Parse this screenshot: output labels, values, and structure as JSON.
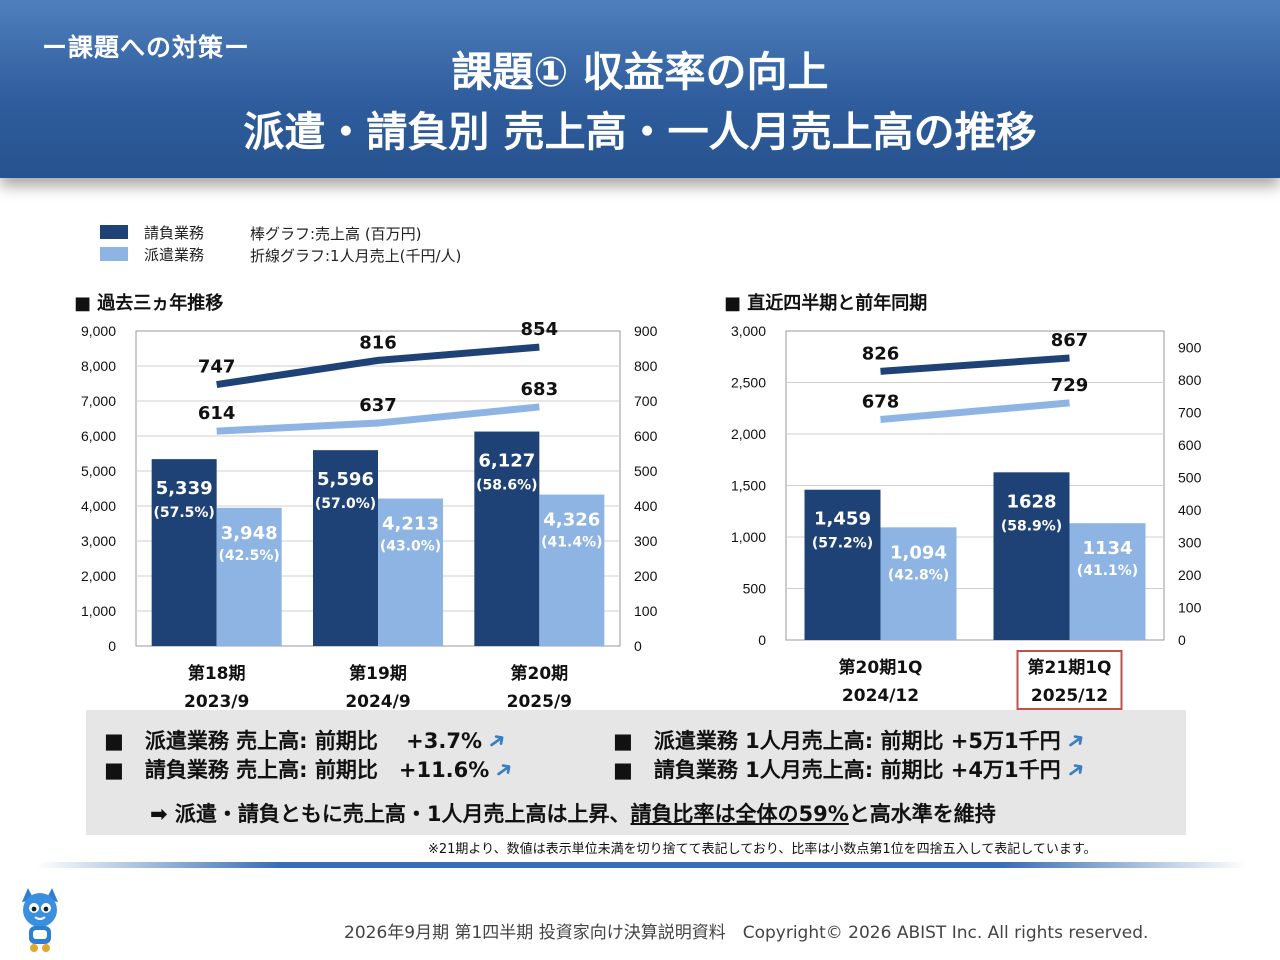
{
  "header": {
    "tag": "ー課題への対策ー",
    "title_line1": "課題① 収益率の向上",
    "title_line2": "派遣・請負別 売上高・一人月売上高の推移"
  },
  "legend": {
    "items": [
      {
        "label": "請負業務",
        "color": "#1f4276"
      },
      {
        "label": "派遣業務",
        "color": "#8eb4e3"
      }
    ],
    "notes": [
      "棒グラフ:売上高 (百万円)",
      "折線グラフ:1人月売上(千円/人)"
    ]
  },
  "colors": {
    "dark": "#1f4276",
    "light": "#8eb4e3",
    "highlight_box": "#c0504d"
  },
  "chart_data": [
    {
      "type": "bar",
      "title": "■ 過去三ヵ年推移",
      "categories": [
        "第18期",
        "第19期",
        "第20期"
      ],
      "category_sublabels": [
        "2023/9",
        "2024/9",
        "2025/9"
      ],
      "ylim": [
        0,
        9000
      ],
      "y_ticks": [
        "9,000",
        "8,000",
        "7,000",
        "6,000",
        "5,000",
        "4,000",
        "3,000",
        "2,000",
        "1,000",
        "0"
      ],
      "y2lim": [
        0,
        900
      ],
      "y2_ticks": [
        "900",
        "800",
        "700",
        "600",
        "500",
        "400",
        "300",
        "200",
        "100",
        "0"
      ],
      "series": [
        {
          "name": "請負業務",
          "kind": "bar",
          "values": [
            5339,
            5596,
            6127
          ],
          "labels": [
            "5,339",
            "5,596",
            "6,127"
          ],
          "pct": [
            "(57.5%)",
            "(57.0%)",
            "(58.6%)"
          ]
        },
        {
          "name": "派遣業務",
          "kind": "bar",
          "values": [
            3948,
            4213,
            4326
          ],
          "labels": [
            "3,948",
            "4,213",
            "4,326"
          ],
          "pct": [
            "(42.5%)",
            "(43.0%)",
            "(41.4%)"
          ]
        },
        {
          "name": "請負業務",
          "kind": "line",
          "axis": "y2",
          "values": [
            747,
            816,
            854
          ],
          "labels": [
            "747",
            "816",
            "854"
          ]
        },
        {
          "name": "派遣業務",
          "kind": "line",
          "axis": "y2",
          "values": [
            614,
            637,
            683
          ],
          "labels": [
            "614",
            "637",
            "683"
          ]
        }
      ],
      "grid": true,
      "legend": "top-left"
    },
    {
      "type": "bar",
      "title": "■ 直近四半期と前年同期",
      "categories": [
        "第20期1Q",
        "第21期1Q"
      ],
      "category_sublabels": [
        "2024/12",
        "2025/12"
      ],
      "highlight_category": 1,
      "ylim": [
        0,
        3000
      ],
      "y_ticks": [
        "3,000",
        "2,500",
        "2,000",
        "1,500",
        "1,000",
        "500",
        "0"
      ],
      "y2lim": [
        0,
        950
      ],
      "y2_ticks": [
        "900",
        "800",
        "700",
        "600",
        "500",
        "400",
        "300",
        "200",
        "100",
        "0"
      ],
      "series": [
        {
          "name": "請負業務",
          "kind": "bar",
          "values": [
            1459,
            1628
          ],
          "labels": [
            "1,459",
            "1628"
          ],
          "pct": [
            "(57.2%)",
            "(58.9%)"
          ]
        },
        {
          "name": "派遣業務",
          "kind": "bar",
          "values": [
            1094,
            1134
          ],
          "labels": [
            "1,094",
            "1134"
          ],
          "pct": [
            "(42.8%)",
            "(41.1%)"
          ]
        },
        {
          "name": "請負業務",
          "kind": "line",
          "axis": "y2",
          "values": [
            826,
            867
          ],
          "labels": [
            "826",
            "867"
          ]
        },
        {
          "name": "派遣業務",
          "kind": "line",
          "axis": "y2",
          "values": [
            678,
            729
          ],
          "labels": [
            "678",
            "729"
          ]
        }
      ],
      "grid": true
    }
  ],
  "summary": {
    "items": [
      {
        "text": "■　派遣業務 売上高: 前期比　 +3.7%"
      },
      {
        "text": "■　請負業務 売上高: 前期比　+11.6%"
      },
      {
        "text": "■　派遣業務 1人月売上高: 前期比 +5万1千円"
      },
      {
        "text": "■　請負業務 1人月売上高: 前期比 +4万1千円"
      }
    ],
    "conclusion_prefix": "➡ 派遣・請負ともに売上高・1人月売上高は上昇、",
    "conclusion_underlined": "請負比率は全体の59%",
    "conclusion_suffix": "と高水準を維持",
    "arrow_icon": "up-right-arrow-icon"
  },
  "footnote": "※21期より、数値は表示単位未満を切り捨てて表記しており、比率は小数点第1位を四捨五入して表記しています。",
  "footer": "2026年9月期 第1四半期 投資家向け決算説明資料　Copyright© 2026 ABIST Inc. All rights reserved."
}
